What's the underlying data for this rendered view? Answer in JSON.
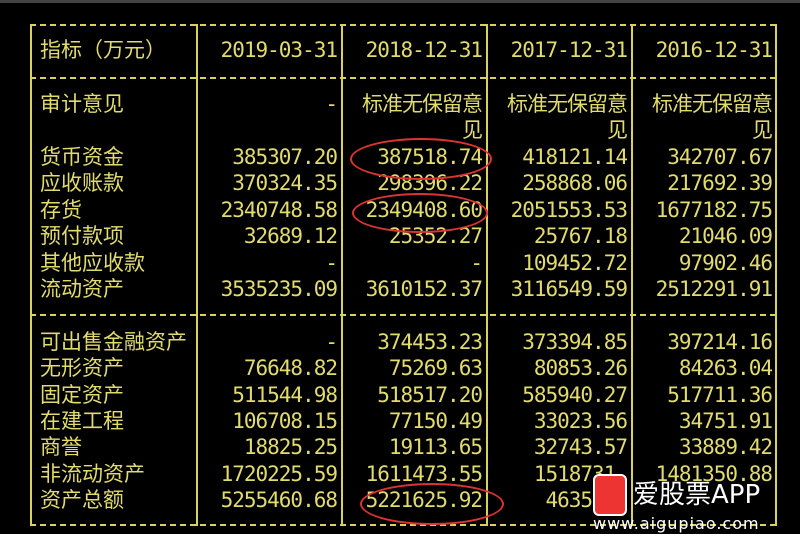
{
  "header": {
    "label": "指标（万元）",
    "dates": [
      "2019-03-31",
      "2018-12-31",
      "2017-12-31",
      "2016-12-31"
    ]
  },
  "audit": {
    "label": "审计意见",
    "values": [
      "-",
      "标准无保留意",
      "标准无保留意",
      "标准无保留意"
    ],
    "wrap": [
      "",
      "见",
      "见",
      "见"
    ]
  },
  "section1": [
    {
      "label": "货币资金",
      "values": [
        "385307.20",
        "387518.74",
        "418121.14",
        "342707.67"
      ]
    },
    {
      "label": "应收账款",
      "values": [
        "370324.35",
        "298396.22",
        "258868.06",
        "217692.39"
      ]
    },
    {
      "label": "存货",
      "values": [
        "2340748.58",
        "2349408.60",
        "2051553.53",
        "1677182.75"
      ]
    },
    {
      "label": "预付款项",
      "values": [
        "32689.12",
        "25352.27",
        "25767.18",
        "21046.09"
      ]
    },
    {
      "label": "其他应收款",
      "values": [
        "-",
        "-",
        "109452.72",
        "97902.46"
      ]
    },
    {
      "label": "流动资产",
      "values": [
        "3535235.09",
        "3610152.37",
        "3116549.59",
        "2512291.91"
      ]
    }
  ],
  "section2": [
    {
      "label": "可出售金融资产",
      "values": [
        "-",
        "374453.23",
        "373394.85",
        "397214.16"
      ]
    },
    {
      "label": "无形资产",
      "values": [
        "76648.82",
        "75269.63",
        "80853.26",
        "84263.04"
      ]
    },
    {
      "label": "固定资产",
      "values": [
        "511544.98",
        "518517.20",
        "585940.27",
        "517711.36"
      ]
    },
    {
      "label": "在建工程",
      "values": [
        "106708.15",
        "77150.49",
        "33023.56",
        "34751.91"
      ]
    },
    {
      "label": "商誉",
      "values": [
        "18825.25",
        "19113.65",
        "32743.57",
        "33889.42"
      ]
    },
    {
      "label": "非流动资产",
      "values": [
        "1720225.59",
        "1611473.55",
        "1518731.",
        "1481350.88"
      ]
    },
    {
      "label": "资产总额",
      "values": [
        "5255460.68",
        "5221625.92",
        "4635280",
        ""
      ]
    }
  ],
  "highlight_color": "#dd3333",
  "watermark": {
    "title": "爱股票APP",
    "url": "www.aigupiao.com",
    "logo_text": "爱股票"
  }
}
